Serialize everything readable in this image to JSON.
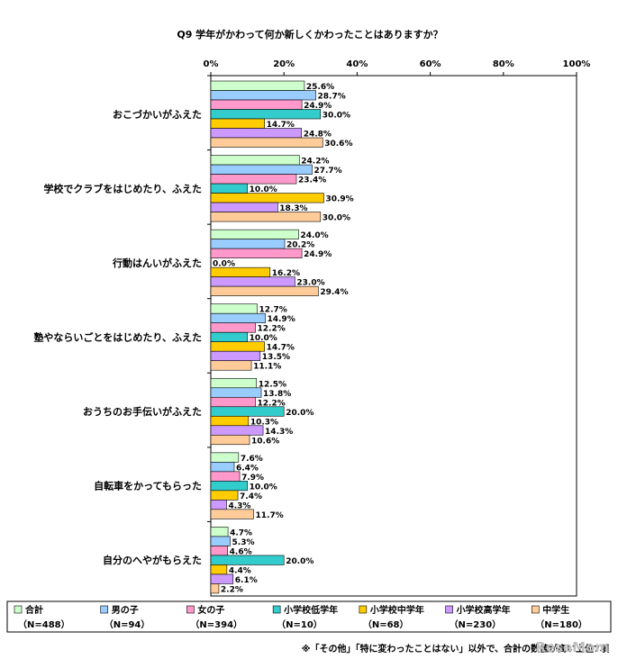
{
  "chart_data": {
    "type": "bar",
    "orientation": "horizontal",
    "title": "Q9 学年がかわって何か新しくかわったことはありますか？",
    "xlim": [
      0,
      100
    ],
    "ticks": [
      "0%",
      "20%",
      "40%",
      "60%",
      "80%",
      "100%"
    ],
    "tick_values": [
      0,
      20,
      40,
      60,
      80,
      100
    ],
    "categories": [
      "おこづかいがふえた",
      "学校でクラブをはじめたり、ふえた",
      "行動はんいがふえた",
      "塾やならいごとをはじめたり、ふえた",
      "おうちのお手伝いがふえた",
      "自転車をかってもらった",
      "自分のへやがもらえた"
    ],
    "series": [
      {
        "name": "合計",
        "n": "（N=488）",
        "color": "#ccffcc",
        "values": [
          25.6,
          24.2,
          24.0,
          12.7,
          12.5,
          7.6,
          4.7
        ],
        "labels": [
          "25.6%",
          "24.2%",
          "24.0%",
          "12.7%",
          "12.5%",
          "7.6%",
          "4.7%"
        ]
      },
      {
        "name": "男の子",
        "n": "（N=94）",
        "color": "#99ccff",
        "values": [
          28.7,
          27.7,
          20.2,
          14.9,
          13.8,
          6.4,
          5.3
        ],
        "labels": [
          "28.7%",
          "27.7%",
          "20.2%",
          "14.9%",
          "13.8%",
          "6.4%",
          "5.3%"
        ]
      },
      {
        "name": "女の子",
        "n": "（N=394）",
        "color": "#ff99cc",
        "values": [
          24.9,
          23.4,
          24.9,
          12.2,
          12.2,
          7.9,
          4.6
        ],
        "labels": [
          "24.9%",
          "23.4%",
          "24.9%",
          "12.2%",
          "12.2%",
          "7.9%",
          "4.6%"
        ]
      },
      {
        "name": "小学校低学年",
        "n": "（N=10）",
        "color": "#33cccc",
        "values": [
          30.0,
          10.0,
          0.0,
          10.0,
          20.0,
          10.0,
          20.0
        ],
        "labels": [
          "30.0%",
          "10.0%",
          "0.0%",
          "10.0%",
          "20.0%",
          "10.0%",
          "20.0%"
        ]
      },
      {
        "name": "小学校中学年",
        "n": "（N=68）",
        "color": "#ffcc00",
        "values": [
          14.7,
          30.9,
          16.2,
          14.7,
          10.3,
          7.4,
          4.4
        ],
        "labels": [
          "14.7%",
          "30.9%",
          "16.2%",
          "14.7%",
          "10.3%",
          "7.4%",
          "4.4%"
        ]
      },
      {
        "name": "小学校高学年",
        "n": "（N=230）",
        "color": "#cc99ff",
        "values": [
          24.8,
          18.3,
          23.0,
          13.5,
          14.3,
          4.3,
          6.1
        ],
        "labels": [
          "24.8%",
          "18.3%",
          "23.0%",
          "13.5%",
          "14.3%",
          "4.3%",
          "6.1%"
        ]
      },
      {
        "name": "中学生",
        "n": "（N=180）",
        "color": "#ffcc99",
        "values": [
          30.6,
          30.0,
          29.4,
          11.1,
          10.6,
          11.7,
          2.2
        ],
        "labels": [
          "30.6%",
          "30.0%",
          "29.4%",
          "11.1%",
          "10.6%",
          "11.7%",
          "2.2%"
        ]
      }
    ],
    "legend_position": "bottom",
    "grid": false
  },
  "footnote": "※「その他」「特に変わったことはない」以外で、合計の数値が高い上位7項",
  "watermark": "ReseMom"
}
